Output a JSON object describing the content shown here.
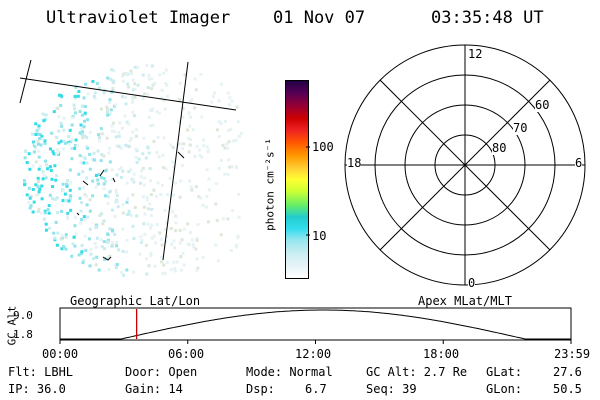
{
  "header": {
    "title": "Ultraviolet Imager",
    "date": "01 Nov 07",
    "time": "03:35:48 UT"
  },
  "colorbar": {
    "unit_label": "photon cm⁻²s⁻¹",
    "tick_100": "100",
    "tick_10": "10",
    "colors": [
      "#ffffff",
      "#e8f4f8",
      "#cdeef2",
      "#99e6ee",
      "#33ddee",
      "#22cccc",
      "#66ee66",
      "#ccff33",
      "#ffff33",
      "#ffcc33",
      "#ff9900",
      "#ff5500",
      "#ee2222",
      "#cc0000",
      "#990033",
      "#550055",
      "#220044"
    ]
  },
  "polar": {
    "label_top": "12",
    "label_bottom": "0",
    "label_left": "18",
    "label_right": "6",
    "label_60": "60",
    "label_70": "70",
    "label_80": "80"
  },
  "timeline": {
    "left_title": "Geographic Lat/Lon",
    "right_title": "Apex MLat/MLT",
    "axis_label": "GC Alt",
    "y_max": "9.0",
    "y_min": "1.8",
    "ticks": [
      "00:00",
      "06:00",
      "12:00",
      "18:00",
      "23:59"
    ],
    "marker_color": "#cc0000"
  },
  "info": {
    "filter": "Flt: LBHL",
    "ip": "IP: 36.0",
    "door": "Door: Open",
    "gain": "Gain: 14",
    "mode": "Mode: Normal",
    "dsp_label": "Dsp:",
    "dsp_value": "6.7",
    "gc_alt": "GC Alt: 2.7 Re",
    "seq": "Seq: 39",
    "glat_label": "GLat:",
    "glat_value": "27.6",
    "glon_label": "GLon:",
    "glon_value": "50.5"
  }
}
